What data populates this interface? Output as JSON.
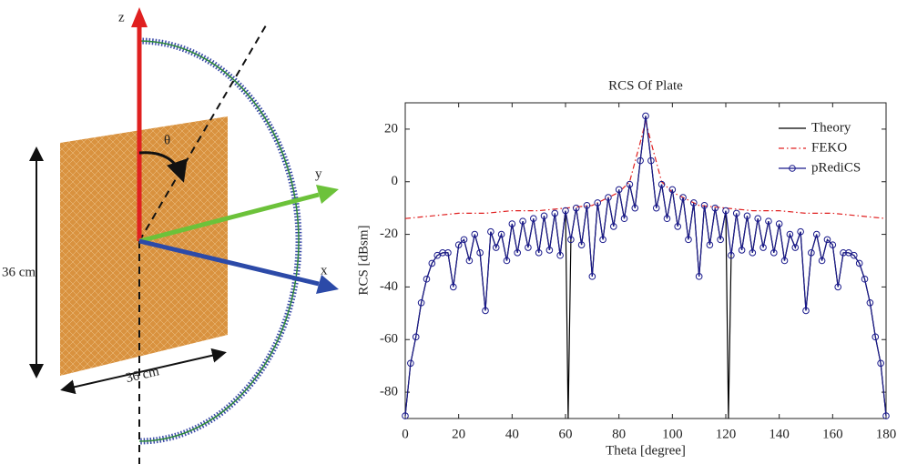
{
  "diagram": {
    "axes": [
      "z",
      "y",
      "x"
    ],
    "angle": "θ",
    "dimensions": [
      "36 cm",
      "36 cm"
    ]
  },
  "chart_data": {
    "type": "line",
    "title": "RCS Of Plate",
    "xlabel": "Theta [degree]",
    "ylabel": "RCS [dBsm]",
    "xlim": [
      0,
      180
    ],
    "xticks": [
      0,
      20,
      40,
      60,
      80,
      100,
      120,
      140,
      160,
      180
    ],
    "ylim": [
      -90,
      30
    ],
    "yticks": [
      -80,
      -60,
      -40,
      -20,
      0,
      20
    ],
    "grid": false,
    "legend": "upper right",
    "series": [
      {
        "name": "Theory",
        "color": "#000000",
        "linestyle": "solid",
        "x": [
          0,
          2,
          4,
          6,
          8,
          10,
          12,
          14,
          16,
          18,
          20,
          22,
          24,
          26,
          28,
          30,
          32,
          34,
          36,
          38,
          40,
          42,
          44,
          46,
          48,
          50,
          52,
          54,
          56,
          58,
          60,
          61,
          62,
          64,
          66,
          68,
          70,
          72,
          74,
          76,
          78,
          80,
          82,
          84,
          86,
          88,
          90,
          92,
          94,
          96,
          98,
          100,
          102,
          104,
          106,
          108,
          110,
          112,
          114,
          116,
          118,
          120,
          121,
          122,
          124,
          126,
          128,
          130,
          132,
          134,
          136,
          138,
          140,
          142,
          144,
          146,
          148,
          150,
          152,
          154,
          156,
          158,
          160,
          162,
          164,
          166,
          168,
          170,
          172,
          174,
          176,
          178,
          180
        ],
        "values": [
          -89,
          -69,
          -59,
          -46,
          -37,
          -31,
          -28,
          -27,
          -27,
          -40,
          -24,
          -22,
          -30,
          -20,
          -27,
          -49,
          -19,
          -25,
          -20,
          -30,
          -16,
          -27,
          -15,
          -25,
          -14,
          -27,
          -13,
          -26,
          -12,
          -28,
          -11,
          -90,
          -22,
          -10,
          -24,
          -9,
          -36,
          -8,
          -22,
          -6,
          -17,
          -3,
          -14,
          -1,
          -10,
          8,
          25,
          8,
          -10,
          -1,
          -14,
          -3,
          -17,
          -6,
          -22,
          -8,
          -36,
          -9,
          -24,
          -10,
          -22,
          -11,
          -90,
          -28,
          -12,
          -26,
          -13,
          -27,
          -14,
          -25,
          -15,
          -27,
          -16,
          -30,
          -20,
          -25,
          -19,
          -49,
          -27,
          -20,
          -30,
          -22,
          -24,
          -40,
          -27,
          -27,
          -28,
          -31,
          -37,
          -46,
          -59,
          -69,
          -89
        ]
      },
      {
        "name": "FEKO",
        "color": "#e02020",
        "linestyle": "dashdot",
        "x": [
          0,
          10,
          20,
          30,
          40,
          50,
          60,
          70,
          80,
          84,
          88,
          90,
          92,
          96,
          100,
          110,
          120,
          130,
          140,
          150,
          160,
          170,
          180
        ],
        "values": [
          -14,
          -13,
          -12,
          -12,
          -11,
          -11,
          -10,
          -9,
          -4,
          0,
          15,
          23,
          15,
          0,
          -4,
          -9,
          -10,
          -11,
          -11,
          -12,
          -12,
          -13,
          -14
        ]
      },
      {
        "name": "pRediCS",
        "color": "#1a1a8c",
        "linestyle": "solid",
        "marker": "circle",
        "x": [
          0,
          2,
          4,
          6,
          8,
          10,
          12,
          14,
          16,
          18,
          20,
          22,
          24,
          26,
          28,
          30,
          32,
          34,
          36,
          38,
          40,
          42,
          44,
          46,
          48,
          50,
          52,
          54,
          56,
          58,
          60,
          62,
          64,
          66,
          68,
          70,
          72,
          74,
          76,
          78,
          80,
          82,
          84,
          86,
          88,
          90,
          92,
          94,
          96,
          98,
          100,
          102,
          104,
          106,
          108,
          110,
          112,
          114,
          116,
          118,
          120,
          122,
          124,
          126,
          128,
          130,
          132,
          134,
          136,
          138,
          140,
          142,
          144,
          146,
          148,
          150,
          152,
          154,
          156,
          158,
          160,
          162,
          164,
          166,
          168,
          170,
          172,
          174,
          176,
          178,
          180
        ],
        "values": [
          -89,
          -69,
          -59,
          -46,
          -37,
          -31,
          -28,
          -27,
          -27,
          -40,
          -24,
          -22,
          -30,
          -20,
          -27,
          -49,
          -19,
          -25,
          -20,
          -30,
          -16,
          -27,
          -15,
          -25,
          -14,
          -27,
          -13,
          -26,
          -12,
          -28,
          -11,
          -22,
          -10,
          -24,
          -9,
          -36,
          -8,
          -22,
          -6,
          -17,
          -3,
          -14,
          -1,
          -10,
          8,
          25,
          8,
          -10,
          -1,
          -14,
          -3,
          -17,
          -6,
          -22,
          -8,
          -36,
          -9,
          -24,
          -10,
          -22,
          -11,
          -28,
          -12,
          -26,
          -13,
          -27,
          -14,
          -25,
          -15,
          -27,
          -16,
          -30,
          -20,
          -25,
          -19,
          -49,
          -27,
          -20,
          -30,
          -22,
          -24,
          -40,
          -27,
          -27,
          -28,
          -31,
          -37,
          -46,
          -59,
          -69,
          -89
        ]
      }
    ]
  }
}
